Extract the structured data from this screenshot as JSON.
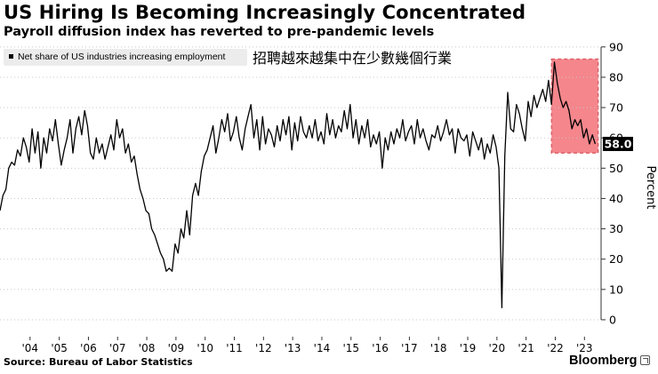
{
  "header": {
    "title": "US Hiring Is Becoming Increasingly Concentrated",
    "subtitle": "Payroll diffusion index has reverted to pre-pandemic levels"
  },
  "annotation": "招聘越來越集中在少數幾個行業",
  "footer": {
    "source": "Source: Bureau of Labor Statistics",
    "brand": "Bloomberg"
  },
  "chart_data": {
    "type": "line",
    "title": "US Hiring Is Becoming Increasingly Concentrated",
    "subtitle": "Payroll diffusion index has reverted to pre-pandemic levels",
    "legend": [
      "Net share of US industries increasing employment"
    ],
    "legend_position": "top-left",
    "ylabel": "Percent",
    "ylim": [
      -5,
      92
    ],
    "yticks": [
      0,
      10,
      20,
      30,
      40,
      50,
      60,
      70,
      80,
      90
    ],
    "y_axis_side": "right",
    "xlim": [
      2003.0,
      2023.6
    ],
    "xticks": [
      2004,
      2005,
      2006,
      2007,
      2008,
      2009,
      2010,
      2011,
      2012,
      2013,
      2014,
      2015,
      2016,
      2017,
      2018,
      2019,
      2020,
      2021,
      2022,
      2023
    ],
    "xtick_labels": [
      "'04",
      "'05",
      "'06",
      "'07",
      "'08",
      "'09",
      "'10",
      "'11",
      "'12",
      "'13",
      "'14",
      "'15",
      "'16",
      "'17",
      "'18",
      "'19",
      "'20",
      "'21",
      "'22",
      "'23"
    ],
    "last_value": 58.0,
    "last_value_label": "58.0",
    "highlight_region": {
      "x_start": 2021.9,
      "x_end": 2023.5,
      "y_start": 55,
      "y_end": 86,
      "color": "#f4868c"
    },
    "series": [
      {
        "name": "Net share of US industries increasing employment",
        "color": "#000000",
        "points": [
          [
            2003.0,
            36
          ],
          [
            2003.1,
            41
          ],
          [
            2003.2,
            43
          ],
          [
            2003.3,
            50
          ],
          [
            2003.4,
            52
          ],
          [
            2003.5,
            51
          ],
          [
            2003.6,
            56
          ],
          [
            2003.7,
            54
          ],
          [
            2003.8,
            60
          ],
          [
            2003.9,
            57
          ],
          [
            2004.0,
            52
          ],
          [
            2004.1,
            63
          ],
          [
            2004.2,
            55
          ],
          [
            2004.3,
            62
          ],
          [
            2004.4,
            50
          ],
          [
            2004.5,
            60
          ],
          [
            2004.6,
            55
          ],
          [
            2004.7,
            63
          ],
          [
            2004.8,
            59
          ],
          [
            2004.9,
            66
          ],
          [
            2005.0,
            58
          ],
          [
            2005.1,
            51
          ],
          [
            2005.2,
            56
          ],
          [
            2005.3,
            60
          ],
          [
            2005.4,
            66
          ],
          [
            2005.5,
            55
          ],
          [
            2005.6,
            63
          ],
          [
            2005.7,
            67
          ],
          [
            2005.8,
            61
          ],
          [
            2005.9,
            69
          ],
          [
            2006.0,
            64
          ],
          [
            2006.1,
            55
          ],
          [
            2006.2,
            53
          ],
          [
            2006.3,
            60
          ],
          [
            2006.4,
            55
          ],
          [
            2006.5,
            58
          ],
          [
            2006.6,
            53
          ],
          [
            2006.7,
            57
          ],
          [
            2006.8,
            61
          ],
          [
            2006.9,
            56
          ],
          [
            2007.0,
            66
          ],
          [
            2007.1,
            60
          ],
          [
            2007.2,
            63
          ],
          [
            2007.3,
            55
          ],
          [
            2007.4,
            58
          ],
          [
            2007.5,
            52
          ],
          [
            2007.6,
            54
          ],
          [
            2007.7,
            48
          ],
          [
            2007.8,
            43
          ],
          [
            2007.9,
            40
          ],
          [
            2008.0,
            36
          ],
          [
            2008.1,
            35
          ],
          [
            2008.2,
            30
          ],
          [
            2008.3,
            28
          ],
          [
            2008.4,
            25
          ],
          [
            2008.5,
            22
          ],
          [
            2008.6,
            20
          ],
          [
            2008.7,
            16
          ],
          [
            2008.8,
            17
          ],
          [
            2008.9,
            16
          ],
          [
            2009.0,
            25
          ],
          [
            2009.1,
            22
          ],
          [
            2009.2,
            30
          ],
          [
            2009.3,
            27
          ],
          [
            2009.4,
            36
          ],
          [
            2009.5,
            28
          ],
          [
            2009.6,
            41
          ],
          [
            2009.7,
            45
          ],
          [
            2009.8,
            41
          ],
          [
            2009.9,
            49
          ],
          [
            2010.0,
            54
          ],
          [
            2010.1,
            56
          ],
          [
            2010.2,
            60
          ],
          [
            2010.3,
            64
          ],
          [
            2010.4,
            55
          ],
          [
            2010.5,
            60
          ],
          [
            2010.6,
            66
          ],
          [
            2010.7,
            62
          ],
          [
            2010.8,
            68
          ],
          [
            2010.9,
            59
          ],
          [
            2011.0,
            62
          ],
          [
            2011.1,
            67
          ],
          [
            2011.2,
            60
          ],
          [
            2011.3,
            56
          ],
          [
            2011.4,
            63
          ],
          [
            2011.5,
            67
          ],
          [
            2011.6,
            71
          ],
          [
            2011.7,
            60
          ],
          [
            2011.8,
            66
          ],
          [
            2011.9,
            56
          ],
          [
            2012.0,
            67
          ],
          [
            2012.1,
            58
          ],
          [
            2012.2,
            63
          ],
          [
            2012.3,
            61
          ],
          [
            2012.4,
            57
          ],
          [
            2012.5,
            64
          ],
          [
            2012.6,
            59
          ],
          [
            2012.7,
            66
          ],
          [
            2012.8,
            61
          ],
          [
            2012.9,
            67
          ],
          [
            2013.0,
            56
          ],
          [
            2013.1,
            65
          ],
          [
            2013.2,
            59
          ],
          [
            2013.3,
            67
          ],
          [
            2013.4,
            62
          ],
          [
            2013.5,
            60
          ],
          [
            2013.6,
            64
          ],
          [
            2013.7,
            60
          ],
          [
            2013.8,
            66
          ],
          [
            2013.9,
            59
          ],
          [
            2014.0,
            62
          ],
          [
            2014.1,
            58
          ],
          [
            2014.2,
            68
          ],
          [
            2014.3,
            61
          ],
          [
            2014.4,
            66
          ],
          [
            2014.5,
            60
          ],
          [
            2014.6,
            64
          ],
          [
            2014.7,
            62
          ],
          [
            2014.8,
            69
          ],
          [
            2014.9,
            63
          ],
          [
            2015.0,
            71
          ],
          [
            2015.1,
            60
          ],
          [
            2015.2,
            66
          ],
          [
            2015.3,
            58
          ],
          [
            2015.4,
            64
          ],
          [
            2015.5,
            60
          ],
          [
            2015.6,
            66
          ],
          [
            2015.7,
            57
          ],
          [
            2015.8,
            61
          ],
          [
            2015.9,
            58
          ],
          [
            2016.0,
            62
          ],
          [
            2016.1,
            50
          ],
          [
            2016.2,
            60
          ],
          [
            2016.3,
            56
          ],
          [
            2016.4,
            62
          ],
          [
            2016.5,
            58
          ],
          [
            2016.6,
            63
          ],
          [
            2016.7,
            60
          ],
          [
            2016.8,
            66
          ],
          [
            2016.9,
            59
          ],
          [
            2017.0,
            62
          ],
          [
            2017.1,
            64
          ],
          [
            2017.2,
            58
          ],
          [
            2017.3,
            66
          ],
          [
            2017.4,
            60
          ],
          [
            2017.5,
            63
          ],
          [
            2017.6,
            59
          ],
          [
            2017.7,
            56
          ],
          [
            2017.8,
            61
          ],
          [
            2017.9,
            60
          ],
          [
            2018.0,
            64
          ],
          [
            2018.1,
            59
          ],
          [
            2018.2,
            62
          ],
          [
            2018.3,
            66
          ],
          [
            2018.4,
            61
          ],
          [
            2018.5,
            63
          ],
          [
            2018.6,
            55
          ],
          [
            2018.7,
            63
          ],
          [
            2018.8,
            60
          ],
          [
            2018.9,
            59
          ],
          [
            2019.0,
            61
          ],
          [
            2019.1,
            54
          ],
          [
            2019.2,
            62
          ],
          [
            2019.3,
            59
          ],
          [
            2019.4,
            56
          ],
          [
            2019.5,
            60
          ],
          [
            2019.6,
            53
          ],
          [
            2019.7,
            58
          ],
          [
            2019.8,
            55
          ],
          [
            2019.9,
            61
          ],
          [
            2020.0,
            57
          ],
          [
            2020.1,
            50
          ],
          [
            2020.2,
            4
          ],
          [
            2020.3,
            54
          ],
          [
            2020.4,
            75
          ],
          [
            2020.5,
            63
          ],
          [
            2020.6,
            62
          ],
          [
            2020.7,
            71
          ],
          [
            2020.8,
            68
          ],
          [
            2020.9,
            63
          ],
          [
            2021.0,
            59
          ],
          [
            2021.1,
            72
          ],
          [
            2021.2,
            67
          ],
          [
            2021.3,
            74
          ],
          [
            2021.4,
            70
          ],
          [
            2021.5,
            73
          ],
          [
            2021.6,
            76
          ],
          [
            2021.7,
            72
          ],
          [
            2021.8,
            79
          ],
          [
            2021.9,
            71
          ],
          [
            2022.0,
            85
          ],
          [
            2022.1,
            78
          ],
          [
            2022.2,
            73
          ],
          [
            2022.3,
            70
          ],
          [
            2022.4,
            72
          ],
          [
            2022.5,
            69
          ],
          [
            2022.6,
            63
          ],
          [
            2022.7,
            66
          ],
          [
            2022.8,
            64
          ],
          [
            2022.9,
            66
          ],
          [
            2023.0,
            60
          ],
          [
            2023.1,
            63
          ],
          [
            2023.2,
            58
          ],
          [
            2023.3,
            61
          ],
          [
            2023.4,
            58
          ]
        ]
      }
    ]
  }
}
